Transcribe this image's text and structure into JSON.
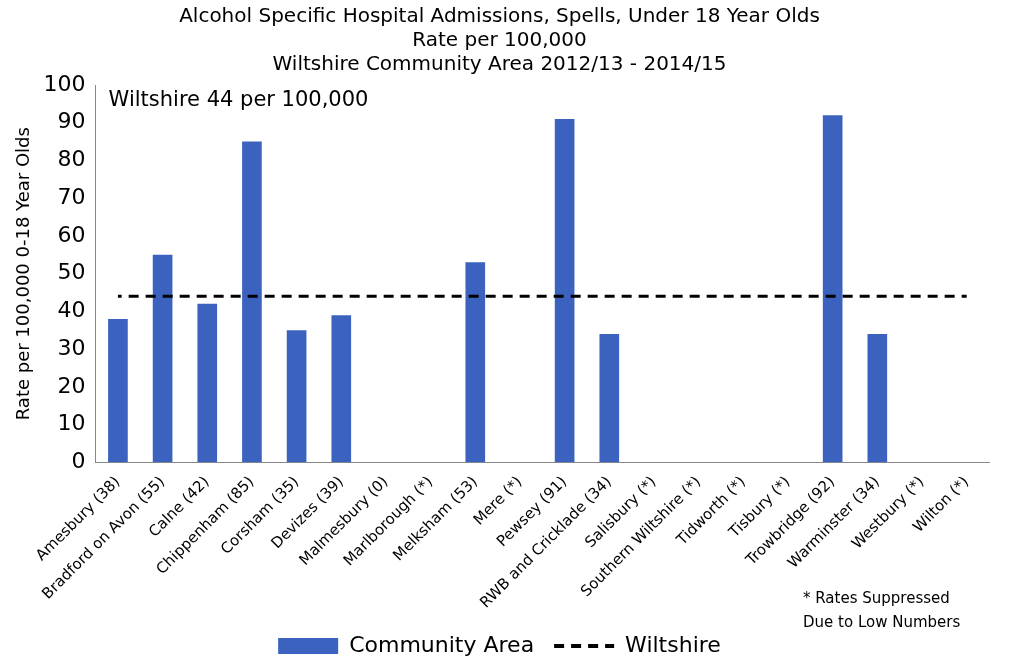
{
  "chart_data": {
    "type": "bar",
    "title": [
      "Alcohol Specific Hospital Admissions, Spells, Under 18 Year Olds",
      "Rate per 100,000",
      "Wiltshire Community Area 2012/13 - 2014/15"
    ],
    "ylabel": "Rate per 100,000 0-18 Year Olds",
    "categories": [
      "Amesbury (38)",
      "Bradford on Avon (55)",
      "Calne (42)",
      "Chippenham (85)",
      "Corsham (35)",
      "Devizes (39)",
      "Malmesbury (0)",
      "Marlborough (*)",
      "Melksham (53)",
      "Mere (*)",
      "Pewsey (91)",
      "RWB and Cricklade (34)",
      "Salisbury (*)",
      "Southern Wiltshire (*)",
      "Tidworth (*)",
      "Tisbury (*)",
      "Trowbridge (92)",
      "Warminster (34)",
      "Westbury (*)",
      "Wilton (*)"
    ],
    "series": [
      {
        "name": "Community Area",
        "type": "bar",
        "color": "#3a62be",
        "values": [
          38,
          55,
          42,
          85,
          35,
          39,
          0,
          null,
          53,
          null,
          91,
          34,
          null,
          null,
          null,
          null,
          92,
          34,
          null,
          null
        ]
      },
      {
        "name": "Wiltshire",
        "type": "line",
        "color": "#000000",
        "line_style": "dashed",
        "values": [
          44,
          44,
          44,
          44,
          44,
          44,
          44,
          44,
          44,
          44,
          44,
          44,
          44,
          44,
          44,
          44,
          44,
          44,
          44,
          44
        ]
      }
    ],
    "ylim": [
      0,
      100
    ],
    "yticks": [
      0,
      10,
      20,
      30,
      40,
      50,
      60,
      70,
      80,
      90,
      100
    ],
    "grid": false,
    "legend": "bottom",
    "marker": "none",
    "annotations": [
      "Wiltshire 44 per 100,000",
      "* Rates Suppressed\nDue to Low Numbers"
    ]
  }
}
